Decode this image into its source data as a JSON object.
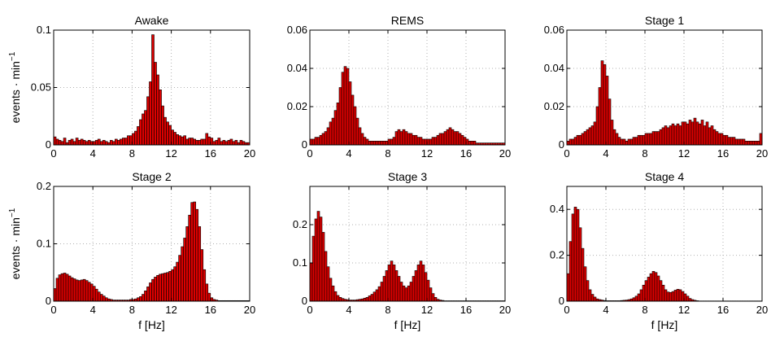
{
  "chart_data": [
    {
      "type": "bar",
      "title": "Awake",
      "xlabel": "",
      "ylabel": "events · min⁻¹",
      "xlim": [
        0,
        20
      ],
      "ylim": [
        0,
        0.1
      ],
      "xticks": [
        "0",
        "4",
        "8",
        "12",
        "16",
        "20"
      ],
      "yticks": [
        "0",
        "0.05",
        "0.1"
      ],
      "grid": true,
      "bar_color": "#dd0000",
      "bin_width_hz": 0.25,
      "values": [
        0.007,
        0.005,
        0.004,
        0.003,
        0.006,
        0.002,
        0.004,
        0.005,
        0.003,
        0.006,
        0.004,
        0.005,
        0.004,
        0.003,
        0.004,
        0.003,
        0.003,
        0.004,
        0.005,
        0.003,
        0.004,
        0.003,
        0.002,
        0.004,
        0.003,
        0.005,
        0.004,
        0.005,
        0.006,
        0.006,
        0.008,
        0.008,
        0.01,
        0.012,
        0.016,
        0.022,
        0.027,
        0.03,
        0.042,
        0.055,
        0.096,
        0.072,
        0.061,
        0.048,
        0.034,
        0.024,
        0.02,
        0.017,
        0.013,
        0.011,
        0.009,
        0.008,
        0.007,
        0.008,
        0.005,
        0.006,
        0.006,
        0.005,
        0.004,
        0.004,
        0.005,
        0.005,
        0.01,
        0.007,
        0.006,
        0.003,
        0.004,
        0.006,
        0.003,
        0.004,
        0.003,
        0.004,
        0.005,
        0.003,
        0.004,
        0.002,
        0.004,
        0.003,
        0.002,
        0.002
      ]
    },
    {
      "type": "bar",
      "title": "REMS",
      "xlabel": "",
      "ylabel": "",
      "xlim": [
        0,
        20
      ],
      "ylim": [
        0,
        0.06
      ],
      "xticks": [
        "0",
        "4",
        "8",
        "12",
        "16",
        "20"
      ],
      "yticks": [
        "0",
        "0.02",
        "0.04",
        "0.06"
      ],
      "grid": true,
      "bar_color": "#dd0000",
      "bin_width_hz": 0.25,
      "values": [
        0.003,
        0.003,
        0.004,
        0.004,
        0.005,
        0.006,
        0.007,
        0.009,
        0.012,
        0.014,
        0.018,
        0.022,
        0.03,
        0.038,
        0.041,
        0.04,
        0.033,
        0.026,
        0.02,
        0.014,
        0.009,
        0.006,
        0.004,
        0.003,
        0.002,
        0.002,
        0.002,
        0.002,
        0.002,
        0.002,
        0.002,
        0.002,
        0.003,
        0.003,
        0.004,
        0.007,
        0.008,
        0.007,
        0.008,
        0.007,
        0.006,
        0.006,
        0.005,
        0.005,
        0.004,
        0.004,
        0.003,
        0.003,
        0.003,
        0.003,
        0.004,
        0.004,
        0.005,
        0.006,
        0.006,
        0.007,
        0.008,
        0.009,
        0.008,
        0.007,
        0.007,
        0.006,
        0.005,
        0.004,
        0.003,
        0.002,
        0.002,
        0.002,
        0.001,
        0.001,
        0.001,
        0.001,
        0.001,
        0.001,
        0.001,
        0.001,
        0.001,
        0.001,
        0.001,
        0.001
      ]
    },
    {
      "type": "bar",
      "title": "Stage 1",
      "xlabel": "",
      "ylabel": "",
      "xlim": [
        0,
        20
      ],
      "ylim": [
        0,
        0.06
      ],
      "xticks": [
        "0",
        "4",
        "8",
        "12",
        "16",
        "20"
      ],
      "yticks": [
        "0",
        "0.02",
        "0.04",
        "0.06"
      ],
      "grid": true,
      "bar_color": "#dd0000",
      "bin_width_hz": 0.25,
      "values": [
        0.002,
        0.003,
        0.003,
        0.004,
        0.005,
        0.005,
        0.006,
        0.007,
        0.008,
        0.009,
        0.01,
        0.012,
        0.02,
        0.03,
        0.044,
        0.042,
        0.036,
        0.024,
        0.013,
        0.008,
        0.006,
        0.004,
        0.003,
        0.003,
        0.002,
        0.003,
        0.003,
        0.004,
        0.004,
        0.005,
        0.005,
        0.005,
        0.006,
        0.006,
        0.006,
        0.007,
        0.007,
        0.007,
        0.008,
        0.009,
        0.01,
        0.009,
        0.01,
        0.011,
        0.01,
        0.011,
        0.01,
        0.012,
        0.012,
        0.011,
        0.013,
        0.012,
        0.014,
        0.012,
        0.011,
        0.013,
        0.01,
        0.012,
        0.009,
        0.01,
        0.008,
        0.007,
        0.006,
        0.006,
        0.005,
        0.005,
        0.004,
        0.004,
        0.004,
        0.003,
        0.003,
        0.003,
        0.003,
        0.002,
        0.002,
        0.002,
        0.002,
        0.002,
        0.002,
        0.006
      ]
    },
    {
      "type": "bar",
      "title": "Stage 2",
      "xlabel": "f [Hz]",
      "ylabel": "events · min⁻¹",
      "xlim": [
        0,
        20
      ],
      "ylim": [
        0,
        0.2
      ],
      "xticks": [
        "0",
        "4",
        "8",
        "12",
        "16",
        "20"
      ],
      "yticks": [
        "0",
        "0.1",
        "0.2"
      ],
      "grid": true,
      "bar_color": "#dd0000",
      "bin_width_hz": 0.25,
      "values": [
        0.022,
        0.04,
        0.046,
        0.048,
        0.049,
        0.047,
        0.044,
        0.041,
        0.039,
        0.037,
        0.036,
        0.037,
        0.038,
        0.036,
        0.033,
        0.03,
        0.026,
        0.021,
        0.016,
        0.012,
        0.009,
        0.006,
        0.004,
        0.003,
        0.002,
        0.002,
        0.002,
        0.002,
        0.002,
        0.002,
        0.002,
        0.003,
        0.003,
        0.004,
        0.006,
        0.008,
        0.012,
        0.018,
        0.025,
        0.032,
        0.038,
        0.042,
        0.045,
        0.047,
        0.048,
        0.049,
        0.05,
        0.052,
        0.055,
        0.06,
        0.068,
        0.08,
        0.095,
        0.11,
        0.13,
        0.15,
        0.172,
        0.173,
        0.16,
        0.13,
        0.09,
        0.055,
        0.03,
        0.014,
        0.006,
        0.003,
        0.002,
        0.001,
        0.001,
        0.001,
        0.001,
        0.001,
        0.001,
        0.001,
        0.001,
        0.001,
        0.001,
        0.001,
        0.001,
        0.001
      ]
    },
    {
      "type": "bar",
      "title": "Stage 3",
      "xlabel": "f [Hz]",
      "ylabel": "",
      "xlim": [
        0,
        20
      ],
      "ylim": [
        0,
        0.3
      ],
      "xticks": [
        "0",
        "4",
        "8",
        "12",
        "16",
        "20"
      ],
      "yticks": [
        "0",
        "0.1",
        "0.2"
      ],
      "grid": true,
      "bar_color": "#dd0000",
      "bin_width_hz": 0.25,
      "values": [
        0.1,
        0.17,
        0.215,
        0.235,
        0.22,
        0.18,
        0.13,
        0.09,
        0.06,
        0.04,
        0.025,
        0.015,
        0.01,
        0.007,
        0.005,
        0.004,
        0.003,
        0.003,
        0.003,
        0.004,
        0.005,
        0.006,
        0.008,
        0.01,
        0.014,
        0.018,
        0.024,
        0.03,
        0.038,
        0.05,
        0.065,
        0.08,
        0.095,
        0.105,
        0.095,
        0.08,
        0.065,
        0.05,
        0.04,
        0.035,
        0.04,
        0.05,
        0.065,
        0.08,
        0.095,
        0.105,
        0.095,
        0.075,
        0.055,
        0.035,
        0.02,
        0.01,
        0.005,
        0.003,
        0.002,
        0.001,
        0.001,
        0.001,
        0.001,
        0.001,
        0.001,
        0.001,
        0.001,
        0.001,
        0.001,
        0.001,
        0.001,
        0.001,
        0.001,
        0.001,
        0.001,
        0.001,
        0.001,
        0.001,
        0.001,
        0.001,
        0.001,
        0.001,
        0.001,
        0.001
      ]
    },
    {
      "type": "bar",
      "title": "Stage 4",
      "xlabel": "f [Hz]",
      "ylabel": "",
      "xlim": [
        0,
        20
      ],
      "ylim": [
        0,
        0.5
      ],
      "xticks": [
        "0",
        "4",
        "8",
        "12",
        "16",
        "20"
      ],
      "yticks": [
        "0",
        "0.2",
        "0.4"
      ],
      "grid": true,
      "bar_color": "#dd0000",
      "bin_width_hz": 0.25,
      "values": [
        0.12,
        0.26,
        0.38,
        0.41,
        0.4,
        0.32,
        0.23,
        0.15,
        0.09,
        0.05,
        0.03,
        0.018,
        0.01,
        0.007,
        0.005,
        0.003,
        0.002,
        0.002,
        0.002,
        0.002,
        0.002,
        0.002,
        0.003,
        0.004,
        0.005,
        0.007,
        0.01,
        0.015,
        0.022,
        0.032,
        0.05,
        0.07,
        0.09,
        0.105,
        0.12,
        0.13,
        0.125,
        0.11,
        0.09,
        0.07,
        0.05,
        0.04,
        0.038,
        0.042,
        0.048,
        0.052,
        0.05,
        0.042,
        0.032,
        0.022,
        0.012,
        0.007,
        0.004,
        0.002,
        0.001,
        0.001,
        0.001,
        0.001,
        0.001,
        0.001,
        0.001,
        0.001,
        0.001,
        0.001,
        0.001,
        0.001,
        0.001,
        0.001,
        0.001,
        0.001,
        0.001,
        0.001,
        0.001,
        0.001,
        0.001,
        0.001,
        0.001,
        0.001,
        0.001,
        0.001
      ]
    }
  ]
}
